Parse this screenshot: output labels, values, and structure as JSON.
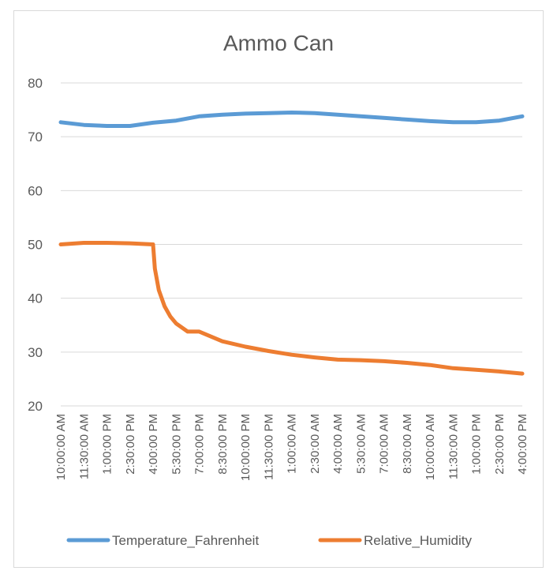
{
  "chart_data": {
    "type": "line",
    "title": "Ammo Can",
    "xlabel": "",
    "ylabel": "",
    "ylim": [
      20,
      80
    ],
    "yticks": [
      "20",
      "30",
      "40",
      "50",
      "60",
      "70",
      "80"
    ],
    "grid": true,
    "legend_position": "bottom",
    "x": [
      "10:00:00 AM",
      "11:30:00 AM",
      "1:00:00 PM",
      "2:30:00 PM",
      "4:00:00 PM",
      "5:30:00 PM",
      "7:00:00 PM",
      "8:30:00 PM",
      "10:00:00 PM",
      "11:30:00 PM",
      "1:00:00 AM",
      "2:30:00 AM",
      "4:00:00 AM",
      "5:30:00 AM",
      "7:00:00 AM",
      "8:30:00 AM",
      "10:00:00 AM",
      "11:30:00 AM",
      "1:00:00 PM",
      "2:30:00 PM",
      "4:00:00 PM"
    ],
    "series": [
      {
        "name": "Temperature_Fahrenheit",
        "color": "#5b9bd5",
        "values": [
          72.7,
          72.2,
          72.0,
          72.0,
          72.6,
          73.0,
          73.8,
          74.1,
          74.3,
          74.4,
          74.5,
          74.4,
          74.1,
          73.8,
          73.5,
          73.2,
          72.9,
          72.7,
          72.7,
          73.0,
          73.8
        ]
      },
      {
        "name": "Relative_Humidity",
        "color": "#ed7d31",
        "values": [
          50.0,
          50.3,
          50.3,
          50.2,
          50.0,
          37.0,
          33.8,
          32.0,
          31.0,
          30.2,
          29.5,
          29.0,
          28.6,
          28.5,
          28.3,
          28.0,
          27.6,
          27.0,
          26.7,
          26.4,
          26.0
        ]
      }
    ],
    "humidity_drop_detail": [
      {
        "x": 4.0,
        "y": 50.0
      },
      {
        "x": 4.08,
        "y": 45.5
      },
      {
        "x": 4.25,
        "y": 41.5
      },
      {
        "x": 4.5,
        "y": 38.5
      },
      {
        "x": 4.75,
        "y": 36.6
      },
      {
        "x": 5.0,
        "y": 35.3
      },
      {
        "x": 5.5,
        "y": 33.8
      }
    ]
  }
}
